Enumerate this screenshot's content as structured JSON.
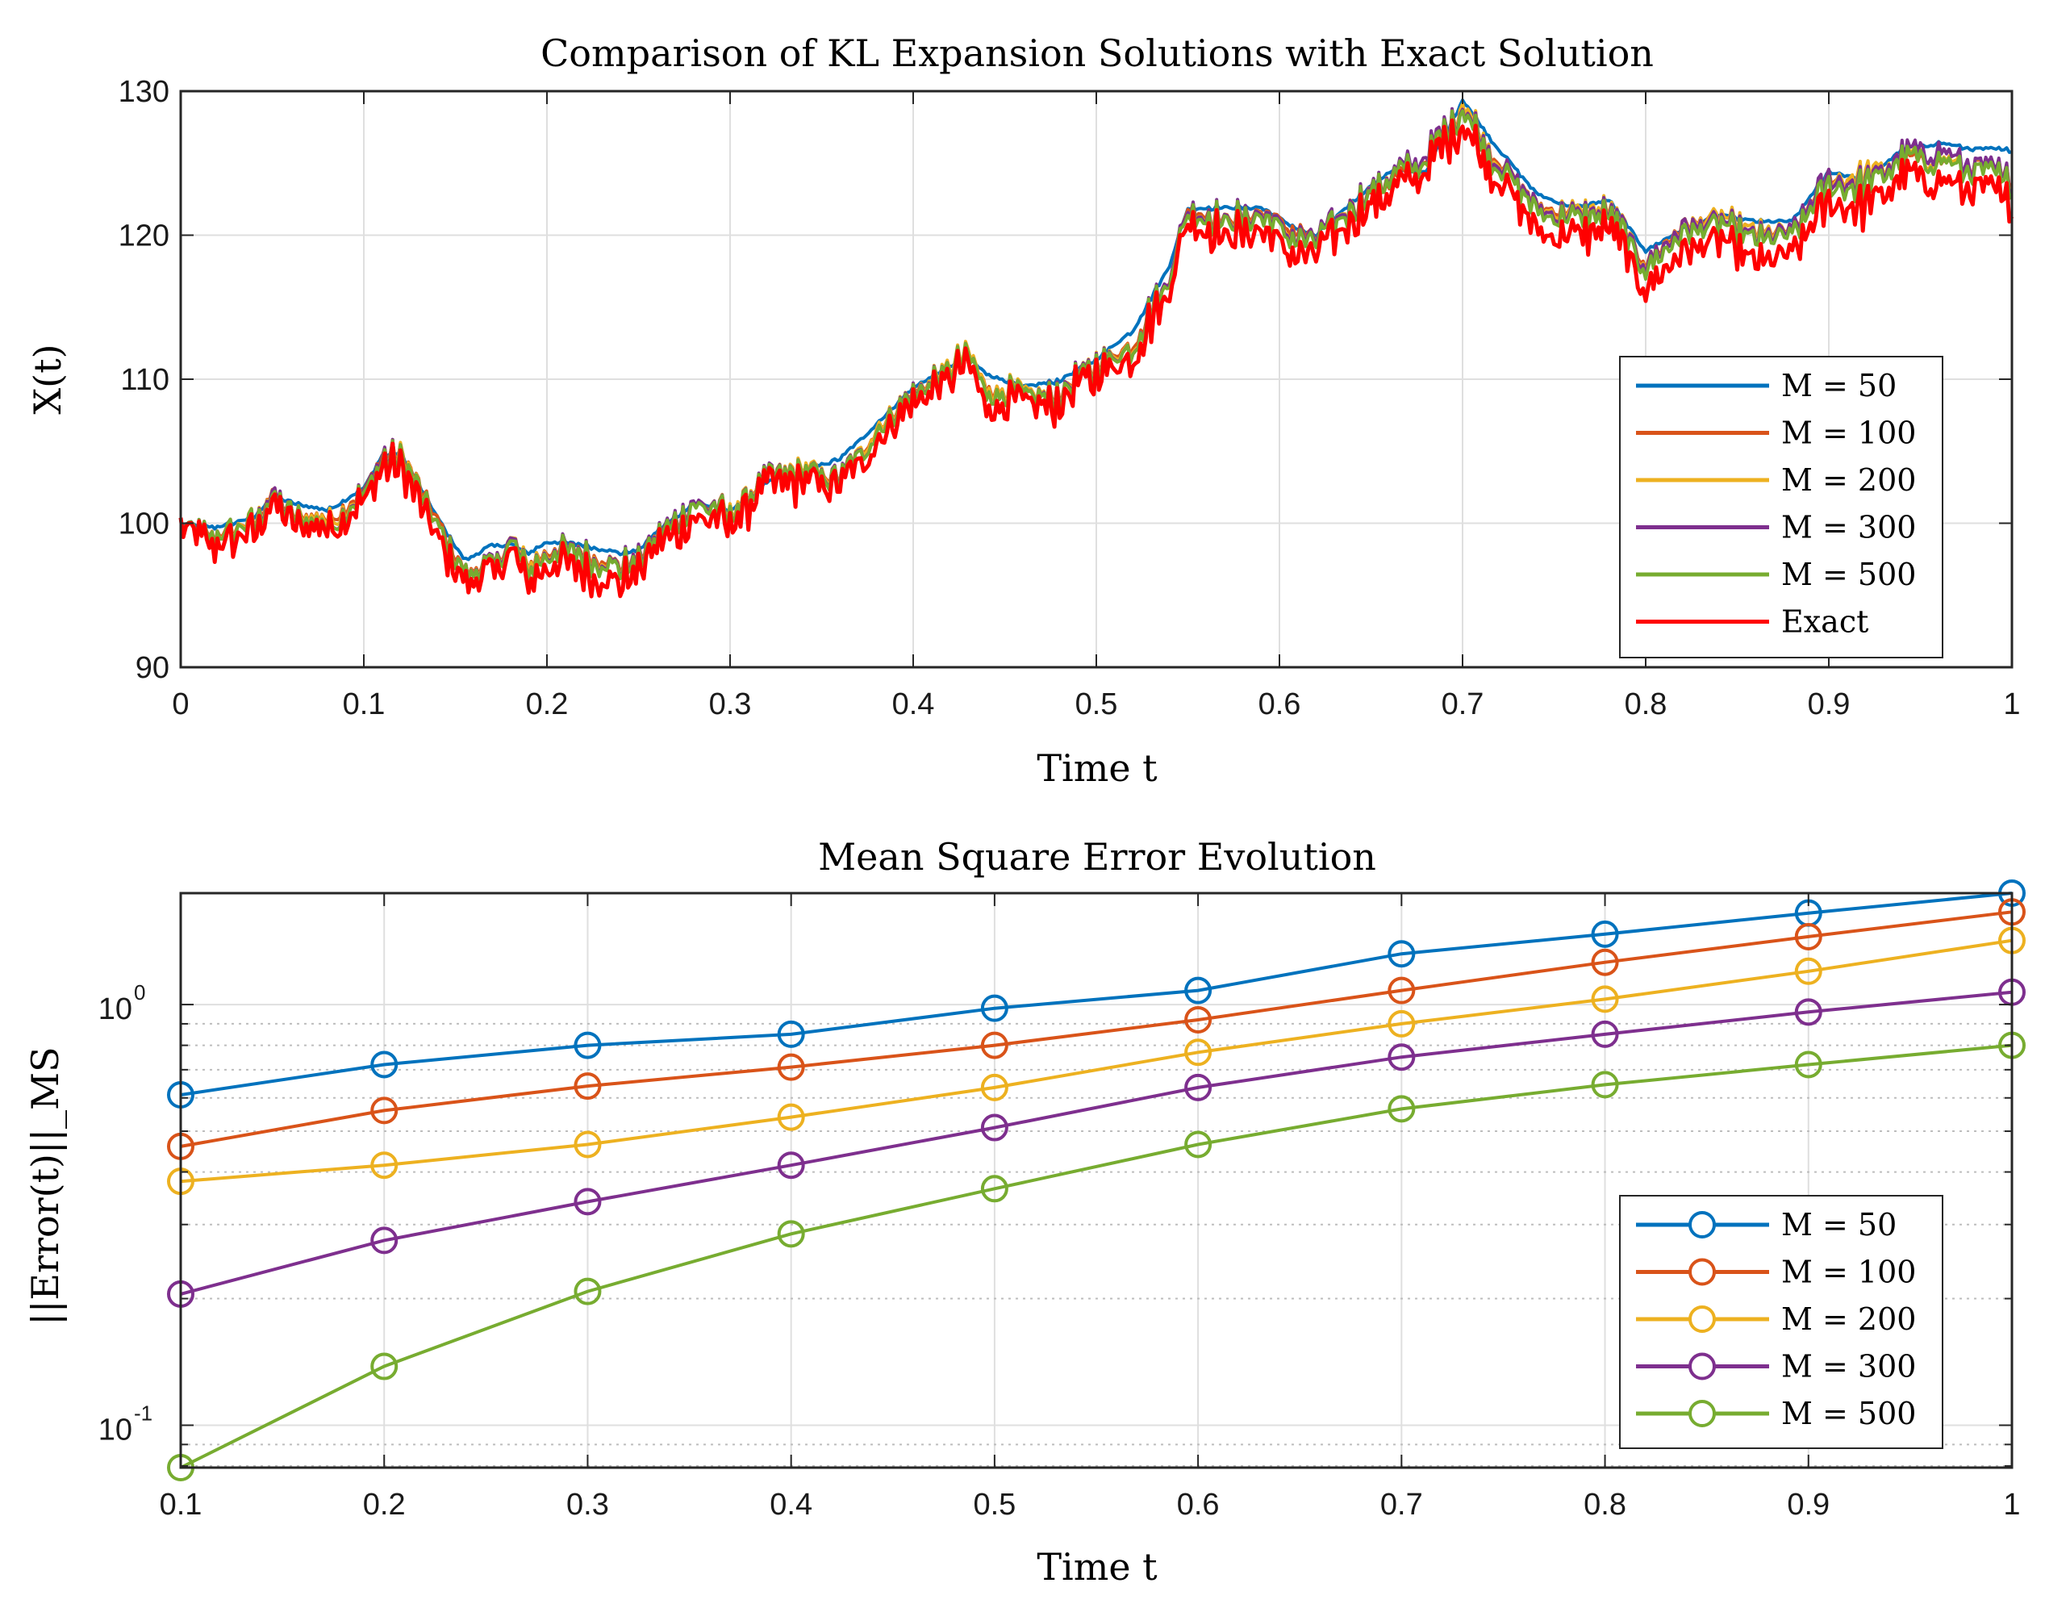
{
  "chart_data": [
    {
      "type": "line",
      "title": "Comparison of KL Expansion Solutions with Exact Solution",
      "xlabel": "Time t",
      "ylabel": "X(t)",
      "xlim": [
        0,
        1
      ],
      "ylim": [
        90,
        130
      ],
      "xticks": [
        "0",
        "0.1",
        "0.2",
        "0.3",
        "0.4",
        "0.5",
        "0.6",
        "0.7",
        "0.8",
        "0.9",
        "1"
      ],
      "yticks": [
        "90",
        "100",
        "110",
        "120",
        "130"
      ],
      "grid": true,
      "legend_position": "bottom-right",
      "x": [
        0,
        0.02,
        0.04,
        0.05,
        0.06,
        0.08,
        0.1,
        0.11,
        0.12,
        0.14,
        0.155,
        0.17,
        0.18,
        0.19,
        0.2,
        0.22,
        0.24,
        0.25,
        0.26,
        0.28,
        0.3,
        0.32,
        0.34,
        0.36,
        0.38,
        0.4,
        0.42,
        0.43,
        0.44,
        0.46,
        0.48,
        0.5,
        0.52,
        0.54,
        0.55,
        0.57,
        0.59,
        0.61,
        0.62,
        0.64,
        0.66,
        0.68,
        0.69,
        0.7,
        0.72,
        0.74,
        0.76,
        0.78,
        0.8,
        0.82,
        0.84,
        0.86,
        0.88,
        0.9,
        0.92,
        0.94,
        0.96,
        0.98,
        1.0
      ],
      "series": [
        {
          "name": "M = 50",
          "color": "#0072BD",
          "values": [
            100,
            99.8,
            100.5,
            102.0,
            101.5,
            101.0,
            102.5,
            104.8,
            105.0,
            100.5,
            97.5,
            98.5,
            98.6,
            98.0,
            98.8,
            98.6,
            98.0,
            98.2,
            99.5,
            101.5,
            101.0,
            102.8,
            103.8,
            104.5,
            107.0,
            109.5,
            111.0,
            111.5,
            110.5,
            109.5,
            110.0,
            111.5,
            113.5,
            118.0,
            122.0,
            122.0,
            122.0,
            120.5,
            120.0,
            122.5,
            124.5,
            124.5,
            127.0,
            129.5,
            126.0,
            123.0,
            122.0,
            122.5,
            119.0,
            120.5,
            121.5,
            121.0,
            121.0,
            124.5,
            124.0,
            126.0,
            126.5,
            126.0,
            126.0
          ]
        },
        {
          "name": "M = 100",
          "color": "#D95319",
          "values": [
            100,
            99.5,
            100.5,
            102.5,
            101.0,
            100.8,
            102.5,
            105.0,
            105.2,
            100.5,
            97.0,
            97.5,
            99.0,
            97.5,
            98.5,
            98.5,
            97.5,
            98.0,
            99.5,
            101.8,
            101.0,
            103.5,
            104.0,
            103.5,
            107.0,
            109.5,
            111.0,
            112.0,
            110.0,
            109.0,
            109.5,
            111.5,
            113.0,
            117.5,
            122.5,
            121.5,
            122.0,
            120.5,
            120.0,
            122.5,
            124.0,
            125.5,
            127.5,
            129.5,
            125.5,
            122.5,
            122.0,
            122.0,
            118.5,
            121.0,
            121.5,
            120.5,
            120.5,
            124.5,
            124.0,
            125.5,
            125.5,
            125.0,
            124.5
          ]
        },
        {
          "name": "M = 200",
          "color": "#EDB120",
          "values": [
            100,
            99.5,
            100.6,
            102.5,
            101.0,
            100.8,
            102.4,
            104.9,
            105.2,
            100.2,
            97.0,
            97.5,
            99.2,
            97.5,
            98.5,
            98.5,
            97.5,
            98.0,
            99.5,
            101.8,
            101.2,
            103.5,
            104.2,
            103.5,
            107.2,
            109.5,
            111.2,
            112.2,
            110.0,
            109.2,
            109.5,
            111.6,
            113.0,
            117.5,
            122.5,
            121.5,
            122.0,
            120.2,
            120.0,
            122.8,
            124.5,
            125.5,
            127.5,
            129.8,
            125.5,
            122.5,
            122.0,
            122.2,
            118.5,
            121.0,
            121.5,
            120.5,
            120.5,
            124.5,
            124.5,
            125.8,
            125.8,
            125.0,
            124.5
          ]
        },
        {
          "name": "M = 300",
          "color": "#7E2F8E",
          "values": [
            100,
            99.5,
            100.5,
            102.5,
            101.0,
            100.5,
            102.5,
            105.0,
            105.0,
            100.2,
            97.0,
            97.5,
            99.2,
            97.2,
            98.5,
            98.5,
            97.5,
            98.0,
            99.5,
            102.0,
            101.0,
            103.5,
            104.0,
            103.5,
            107.0,
            109.5,
            111.0,
            112.0,
            109.8,
            109.0,
            109.5,
            111.5,
            113.0,
            117.8,
            122.6,
            121.5,
            122.0,
            120.2,
            120.0,
            122.8,
            124.5,
            126.0,
            127.8,
            129.5,
            125.5,
            122.5,
            121.8,
            122.0,
            118.5,
            121.0,
            121.2,
            120.2,
            120.5,
            124.5,
            124.0,
            126.0,
            126.5,
            125.0,
            124.5
          ]
        },
        {
          "name": "M = 500",
          "color": "#77AC30",
          "values": [
            100,
            99.5,
            100.5,
            102.2,
            101.0,
            100.5,
            102.4,
            104.8,
            105.0,
            100.2,
            97.0,
            97.4,
            99.0,
            97.2,
            98.4,
            98.4,
            97.4,
            97.8,
            99.4,
            101.8,
            101.0,
            103.4,
            104.0,
            103.4,
            107.0,
            109.4,
            111.0,
            112.0,
            109.8,
            109.0,
            109.4,
            111.4,
            113.0,
            117.6,
            122.4,
            121.4,
            121.8,
            120.0,
            119.8,
            122.6,
            124.4,
            125.6,
            127.6,
            129.4,
            125.2,
            122.2,
            121.6,
            121.8,
            118.2,
            120.6,
            121.0,
            120.0,
            120.2,
            124.0,
            123.8,
            125.6,
            125.8,
            124.6,
            124.2
          ]
        },
        {
          "name": "Exact",
          "color": "#FF0000",
          "values": [
            100,
            99.0,
            100.0,
            102.0,
            100.5,
            100.5,
            102.0,
            104.5,
            104.5,
            99.5,
            96.5,
            97.0,
            98.5,
            96.5,
            97.8,
            97.5,
            96.5,
            97.2,
            99.0,
            101.0,
            100.5,
            103.0,
            103.5,
            103.0,
            106.5,
            109.0,
            110.5,
            111.5,
            109.0,
            108.5,
            109.0,
            111.0,
            112.5,
            117.0,
            122.0,
            120.5,
            121.0,
            119.0,
            119.0,
            122.0,
            123.5,
            125.0,
            127.0,
            128.5,
            124.5,
            121.0,
            120.5,
            121.0,
            117.0,
            119.5,
            120.0,
            118.5,
            119.0,
            123.0,
            122.5,
            124.5,
            124.5,
            123.5,
            123.0
          ]
        }
      ]
    },
    {
      "type": "line",
      "title": "Mean Square Error Evolution",
      "xlabel": "Time t",
      "ylabel": "||Error(t)||_MS",
      "yscale": "log",
      "xlim": [
        0.1,
        1
      ],
      "ylim": [
        0.0793,
        1.84
      ],
      "xticks": [
        "0.1",
        "0.2",
        "0.3",
        "0.4",
        "0.5",
        "0.6",
        "0.7",
        "0.8",
        "0.9",
        "1"
      ],
      "grid": true,
      "legend_position": "bottom-right",
      "x": [
        0.1,
        0.2,
        0.3,
        0.4,
        0.5,
        0.6,
        0.7,
        0.8,
        0.9,
        1.0
      ],
      "series": [
        {
          "name": "M = 50",
          "marker": "o",
          "color": "#0072BD",
          "values": [
            0.61,
            0.72,
            0.8,
            0.85,
            0.98,
            1.08,
            1.32,
            1.47,
            1.65,
            1.84
          ]
        },
        {
          "name": "M = 100",
          "marker": "o",
          "color": "#D95319",
          "values": [
            0.46,
            0.56,
            0.64,
            0.71,
            0.8,
            0.92,
            1.08,
            1.26,
            1.45,
            1.66
          ]
        },
        {
          "name": "M = 200",
          "marker": "o",
          "color": "#EDB120",
          "values": [
            0.38,
            0.415,
            0.465,
            0.54,
            0.635,
            0.77,
            0.9,
            1.03,
            1.2,
            1.42
          ]
        },
        {
          "name": "M = 300",
          "marker": "o",
          "color": "#7E2F8E",
          "values": [
            0.205,
            0.275,
            0.34,
            0.415,
            0.51,
            0.635,
            0.75,
            0.85,
            0.96,
            1.07
          ]
        },
        {
          "name": "M = 500",
          "marker": "o",
          "color": "#77AC30",
          "values": [
            0.0793,
            0.138,
            0.208,
            0.285,
            0.365,
            0.465,
            0.565,
            0.645,
            0.72,
            0.8
          ]
        }
      ]
    }
  ],
  "legends": {
    "top": [
      "M = 50",
      "M = 100",
      "M = 200",
      "M = 300",
      "M = 500",
      "Exact"
    ],
    "bottom": [
      "M = 50",
      "M = 100",
      "M = 200",
      "M = 300",
      "M = 500"
    ]
  },
  "log_tick_labels": {
    "major": [
      {
        "base": "10",
        "exp": "0",
        "value": 1.0
      },
      {
        "base": "10",
        "exp": "-1",
        "value": 0.1
      }
    ]
  }
}
